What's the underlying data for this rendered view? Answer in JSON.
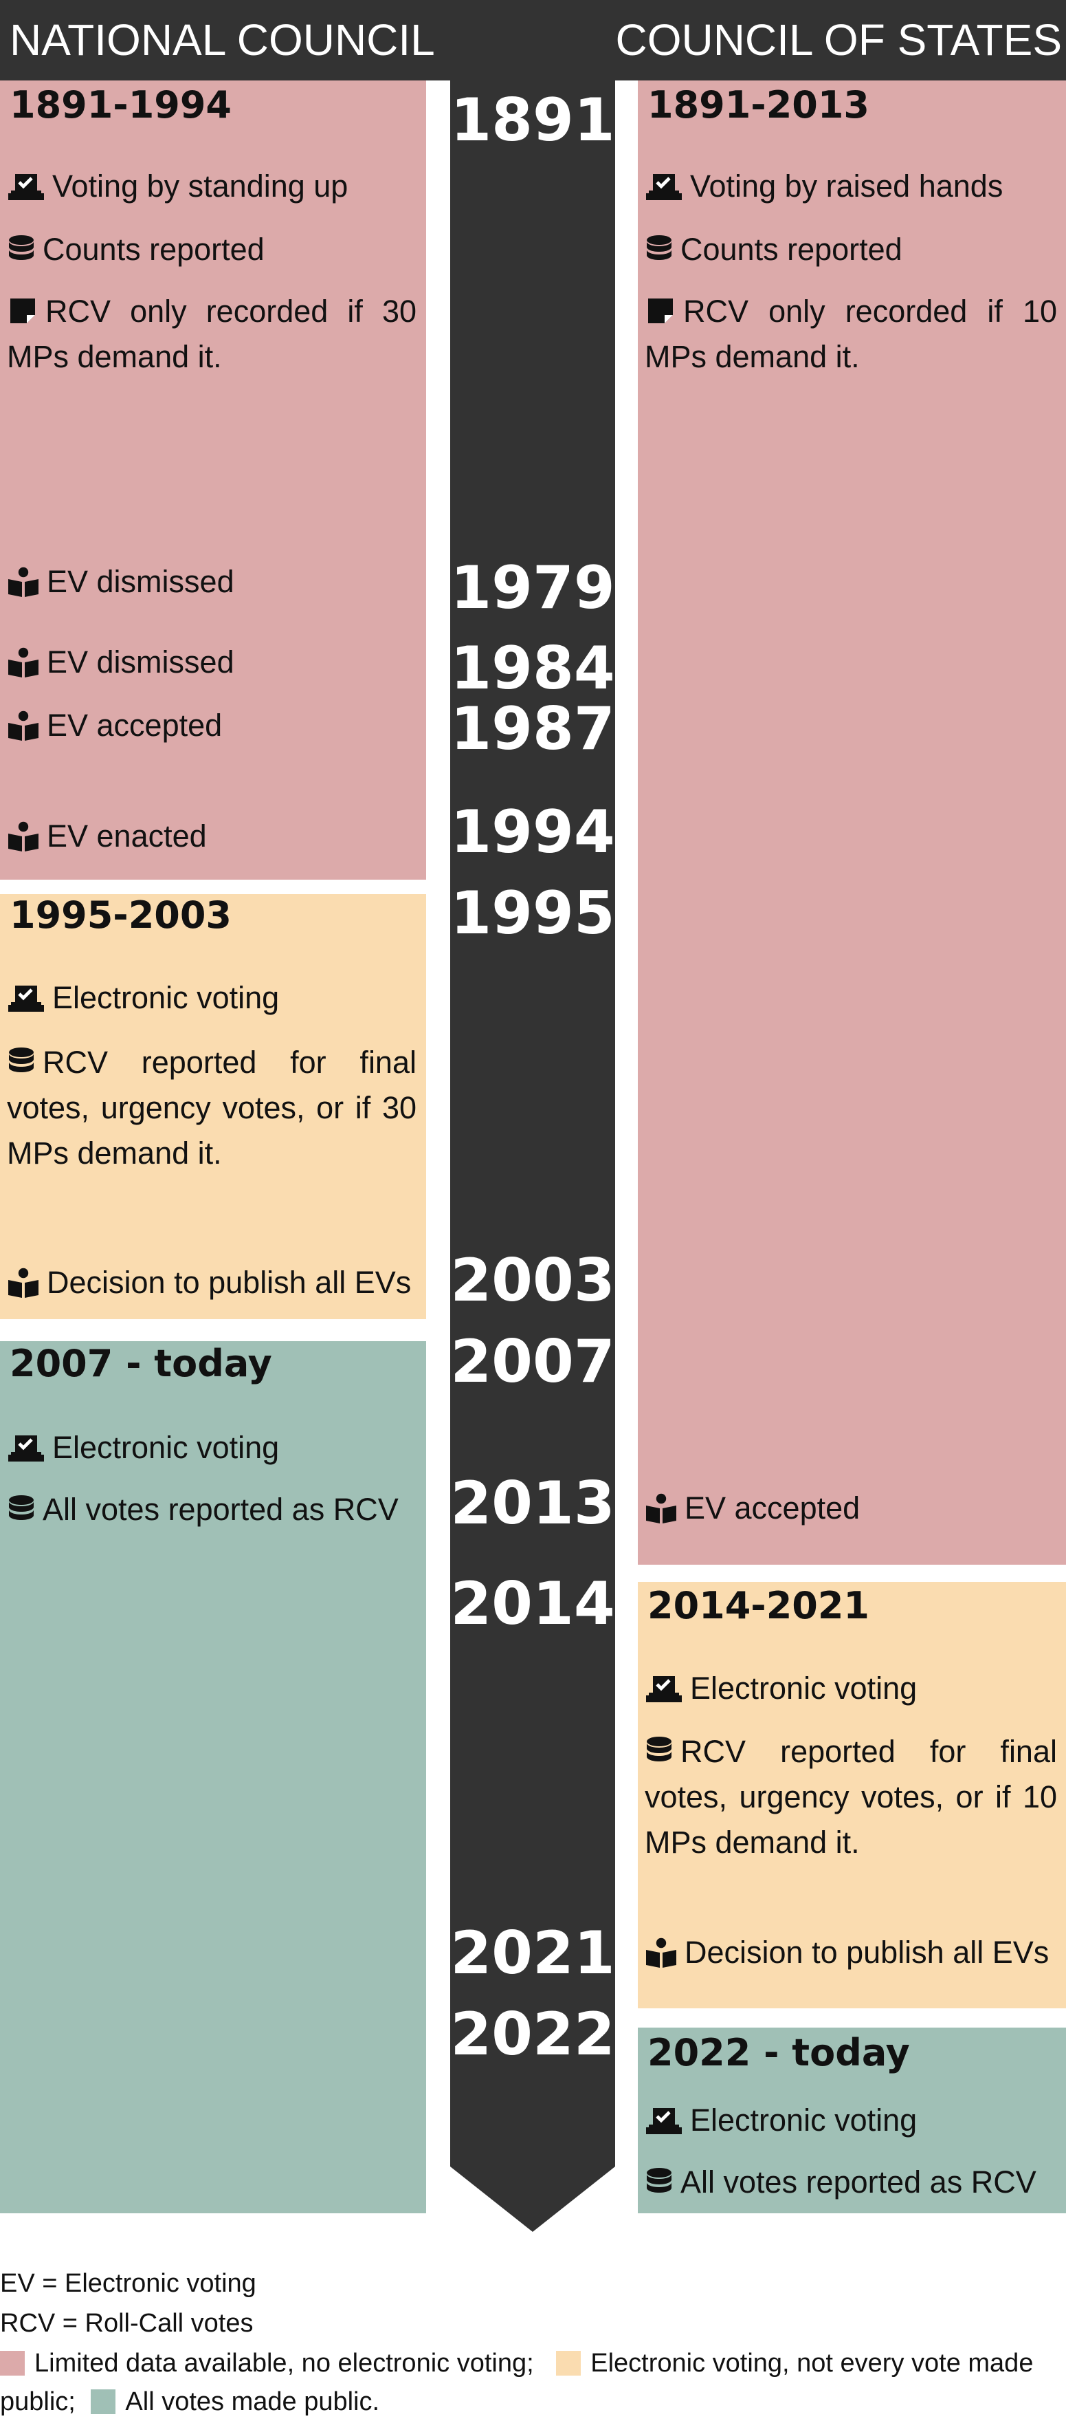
{
  "header": {
    "left_title": "NATIONAL COUNCIL",
    "right_title": "COUNCIL OF STATES"
  },
  "colors": {
    "dark": "#333333",
    "limited_data": "#dcaaaa",
    "electronic_partial": "#fadcb0",
    "all_public": "#a0c0b6"
  },
  "timeline_years": [
    "1891",
    "1979",
    "1984",
    "1987",
    "1994",
    "1995",
    "2003",
    "2007",
    "2013",
    "2014",
    "2021",
    "2022"
  ],
  "national_council": {
    "p1": {
      "period": "1891-1994",
      "voting": "Voting by standing up",
      "counts": "Counts reported",
      "rcv": "RCV only recorded if 30 MPs demand it.",
      "ev1979": "EV dismissed",
      "ev1984": "EV dismissed",
      "ev1987": "EV accepted",
      "ev1994": "EV enacted"
    },
    "p2": {
      "period": "1995-2003",
      "voting": "Electronic voting",
      "rcv": "RCV reported for final votes, urgency votes, or if 30 MPs demand it.",
      "decision": "Decision to publish all EVs"
    },
    "p3": {
      "period": "2007 - today",
      "voting": "Electronic voting",
      "all": "All votes reported as RCV"
    }
  },
  "council_of_states": {
    "p1": {
      "period": "1891-2013",
      "voting": "Voting by raised hands",
      "counts": "Counts reported",
      "rcv": "RCV only recorded if 10 MPs demand it.",
      "ev2013": "EV accepted"
    },
    "p2": {
      "period": "2014-2021",
      "voting": "Electronic voting",
      "rcv": "RCV reported for final votes, urgency votes, or if 10 MPs demand it.",
      "decision": "Decision to publish all EVs"
    },
    "p3": {
      "period": "2022 - today",
      "voting": "Electronic voting",
      "all": "All votes reported as RCV"
    }
  },
  "legend": {
    "ev": "EV = Electronic voting",
    "rcv": "RCV = Roll-Call votes",
    "limited": "Limited data available, no electronic voting;",
    "partial_line1": "Electronic voting, not every vote made",
    "partial_line2": "public;",
    "all": "All votes made public."
  },
  "icons": [
    "vote-box-icon",
    "database-icon",
    "note-icon",
    "book-reader-icon"
  ]
}
